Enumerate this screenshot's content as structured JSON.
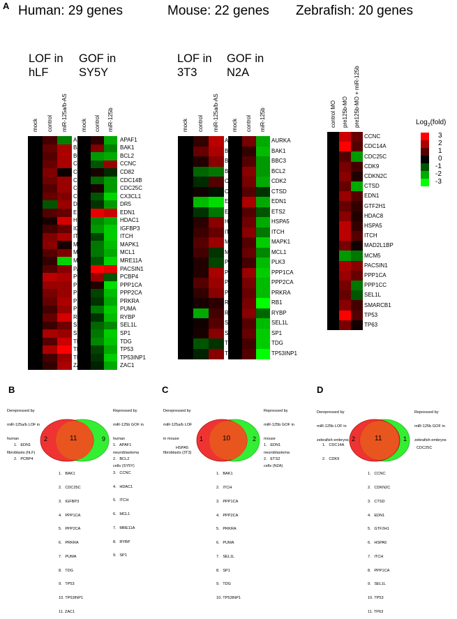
{
  "panel_labels": {
    "a": "A",
    "b": "B",
    "c": "C",
    "d": "D"
  },
  "species_titles": {
    "human": "Human: 29 genes",
    "mouse": "Mouse: 22 genes",
    "zebrafish": "Zebrafish: 20 genes"
  },
  "condition_titles": {
    "human_lof": [
      "LOF in",
      "hLF"
    ],
    "human_gof": [
      "GOF in",
      "SY5Y"
    ],
    "mouse_lof": [
      "LOF in",
      "3T3"
    ],
    "mouse_gof": [
      "GOF in",
      "N2A"
    ]
  },
  "colors": {
    "red": "#ff1a1a",
    "black": "#000000",
    "green": "#1aff1a"
  },
  "legend": {
    "title": "Log",
    "title_sub": "2",
    "title_suffix": "(fold)",
    "ticks": [
      "3",
      "2",
      "1",
      "0",
      "-1",
      "-2",
      "-3"
    ]
  },
  "chart_data": [
    {
      "type": "heatmap",
      "title": "LOF in hLF",
      "columns": [
        "mock",
        "control",
        "miR-125a/b-AS"
      ],
      "rows": [
        "APAF1",
        "BAK1",
        "BCL2",
        "CCNC",
        "CD82",
        "CDC14B",
        "CDC25C",
        "CX3CL1",
        "DR5",
        "EDN1",
        "HDAC1",
        "IGFBP3",
        "ITCH",
        "MAPK1",
        "MCL1",
        "MRE11A",
        "PACSIN1",
        "PCBP4",
        "PPP1CA",
        "PPP2CA",
        "PRKRA",
        "PUMA",
        "RYBP",
        "SEL1L",
        "SP1",
        "TDG",
        "TP53",
        "TP53INP1",
        "ZAC1"
      ],
      "values": [
        [
          0,
          0.8,
          -1.5
        ],
        [
          0,
          1.2,
          2.0
        ],
        [
          0,
          1.0,
          2.0
        ],
        [
          0,
          1.2,
          2.0
        ],
        [
          0,
          1.5,
          0.1
        ],
        [
          0,
          1.3,
          1.8
        ],
        [
          0,
          1.0,
          1.8
        ],
        [
          0,
          1.2,
          1.5
        ],
        [
          0,
          -1.0,
          1.8
        ],
        [
          0,
          1.0,
          1.2
        ],
        [
          0,
          0.3,
          2.5
        ],
        [
          0,
          0.8,
          1.2
        ],
        [
          0,
          1.5,
          2.0
        ],
        [
          0,
          1.6,
          0.3
        ],
        [
          0,
          1.0,
          1.5
        ],
        [
          0,
          0.6,
          -2.5
        ],
        [
          0,
          1.0,
          1.6
        ],
        [
          0,
          2.2,
          2.0
        ],
        [
          0,
          1.8,
          1.8
        ],
        [
          0,
          1.4,
          1.8
        ],
        [
          0,
          1.2,
          2.0
        ],
        [
          0,
          0.8,
          1.8
        ],
        [
          0,
          1.2,
          2.5
        ],
        [
          0,
          0.7,
          1.3
        ],
        [
          0,
          2.0,
          1.8
        ],
        [
          0,
          1.0,
          2.4
        ],
        [
          0,
          2.0,
          3.0
        ],
        [
          0,
          0.8,
          1.8
        ],
        [
          0,
          0.6,
          2.0
        ]
      ],
      "value_range": [
        -3,
        3
      ]
    },
    {
      "type": "heatmap",
      "title": "GOF in SY5Y",
      "columns": [
        "mock",
        "control",
        "miR-125b"
      ],
      "rows": [
        "APAF1",
        "BAK1",
        "BCL2",
        "CCNC",
        "CD82",
        "CDC14B",
        "CDC25C",
        "CX3CL1",
        "DR5",
        "EDN1",
        "HDAC1",
        "IGFBP3",
        "ITCH",
        "MAPK1",
        "MCL1",
        "MRE11A",
        "PACSIN1",
        "PCBP4",
        "PPP1CA",
        "PPP2CA",
        "PRKRA",
        "PUMA",
        "RYBP",
        "SEL1L",
        "SP1",
        "TDG",
        "TP53",
        "TP53INP1",
        "ZAC1"
      ],
      "values": [
        [
          0,
          0.5,
          -2.0
        ],
        [
          0,
          1.5,
          -1.5
        ],
        [
          0,
          -1.8,
          -2.0
        ],
        [
          0,
          -1.0,
          1.8
        ],
        [
          0,
          0.3,
          -0.5
        ],
        [
          0,
          -1.2,
          -1.8
        ],
        [
          0,
          0.3,
          -1.8
        ],
        [
          0,
          -1.0,
          -2.5
        ],
        [
          0,
          -0.6,
          -1.8
        ],
        [
          0,
          2.7,
          2.4
        ],
        [
          0,
          -1.6,
          -2.0
        ],
        [
          0,
          -1.8,
          -2.4
        ],
        [
          0,
          -0.8,
          -2.4
        ],
        [
          0,
          -1.4,
          -2.2
        ],
        [
          0,
          -1.4,
          -2.0
        ],
        [
          0,
          -1.0,
          -2.5
        ],
        [
          0,
          3.0,
          2.7
        ],
        [
          0,
          1.8,
          -1.0
        ],
        [
          0,
          0.4,
          -2.6
        ],
        [
          0,
          -0.8,
          -2.2
        ],
        [
          0,
          -0.6,
          -2.0
        ],
        [
          0,
          -1.4,
          -2.4
        ],
        [
          0,
          -0.6,
          -2.2
        ],
        [
          0,
          -1.2,
          -1.6
        ],
        [
          0,
          -1.4,
          -2.4
        ],
        [
          0,
          -1.6,
          -2.3
        ],
        [
          0,
          -0.8,
          -2.0
        ],
        [
          0,
          -0.6,
          -2.4
        ],
        [
          0,
          -0.4,
          -2.0
        ]
      ],
      "value_range": [
        -3,
        3
      ]
    },
    {
      "type": "heatmap",
      "title": "LOF in 3T3",
      "columns": [
        "mock",
        "control",
        "miR-125a/b-AS"
      ],
      "rows": [
        "AURKA",
        "BAK1",
        "BBC3",
        "BCL2",
        "CDK2",
        "CTSD",
        "EDN1",
        "ETS2",
        "HSPA5",
        "ITCH",
        "MAPK1",
        "MCL1",
        "PLK3",
        "PPP1CA",
        "PPP2CA",
        "PRKRA",
        "RB1",
        "RYBP",
        "SEL1L",
        "SP1",
        "TDG",
        "TP53INP1"
      ],
      "values": [
        [
          0,
          0.6,
          2.2
        ],
        [
          0,
          1.2,
          2.0
        ],
        [
          0,
          0.4,
          1.6
        ],
        [
          0,
          -1.2,
          -1.4
        ],
        [
          0,
          -0.5,
          1.0
        ],
        [
          0,
          0.2,
          -0.2
        ],
        [
          0,
          -2.2,
          -2.6
        ],
        [
          0,
          -0.6,
          -1.4
        ],
        [
          0,
          0.5,
          1.6
        ],
        [
          0,
          0.7,
          1.2
        ],
        [
          0,
          1.0,
          1.8
        ],
        [
          0,
          0.8,
          -0.6
        ],
        [
          0,
          0.4,
          -0.8
        ],
        [
          0,
          0.4,
          2.0
        ],
        [
          0,
          1.0,
          1.8
        ],
        [
          0,
          0.6,
          1.6
        ],
        [
          0,
          0.3,
          0.5
        ],
        [
          0,
          -2.0,
          0.8
        ],
        [
          0,
          0.2,
          1.0
        ],
        [
          0,
          0.3,
          1.6
        ],
        [
          0,
          -1.0,
          -0.6
        ],
        [
          0,
          -0.4,
          1.6
        ]
      ],
      "value_range": [
        -3,
        3
      ]
    },
    {
      "type": "heatmap",
      "title": "GOF in N2A",
      "columns": [
        "mock",
        "control",
        "miR-125b"
      ],
      "rows": [
        "AURKA",
        "BAK1",
        "BBC3",
        "BCL2",
        "CDK2",
        "CTSD",
        "EDN1",
        "ETS2",
        "HSPA5",
        "ITCH",
        "MAPK1",
        "MCL1",
        "PLK3",
        "PPP1CA",
        "PPP2CA",
        "PRKRA",
        "RB1",
        "RYBP",
        "SEL1L",
        "SP1",
        "TDG",
        "TP53INP1"
      ],
      "values": [
        [
          0,
          1.4,
          -2.0
        ],
        [
          0,
          0.6,
          -2.2
        ],
        [
          0,
          1.0,
          -1.8
        ],
        [
          0,
          1.6,
          -1.8
        ],
        [
          0,
          1.4,
          -2.0
        ],
        [
          0,
          1.0,
          -0.6
        ],
        [
          0,
          2.0,
          -2.0
        ],
        [
          0,
          1.0,
          -1.0
        ],
        [
          0,
          1.3,
          -2.0
        ],
        [
          0,
          1.6,
          -1.4
        ],
        [
          0,
          1.0,
          -2.4
        ],
        [
          0,
          1.2,
          -1.6
        ],
        [
          0,
          0.8,
          -2.2
        ],
        [
          0,
          1.8,
          -2.4
        ],
        [
          0,
          1.4,
          -2.2
        ],
        [
          0,
          1.2,
          -2.2
        ],
        [
          0,
          1.4,
          -3.0
        ],
        [
          0,
          1.6,
          -1.2
        ],
        [
          0,
          1.0,
          -2.2
        ],
        [
          0,
          1.2,
          -2.4
        ],
        [
          0,
          0.8,
          -2.4
        ],
        [
          0,
          1.0,
          -3.0
        ]
      ],
      "value_range": [
        -3,
        3
      ]
    },
    {
      "type": "heatmap",
      "title": "",
      "columns": [
        "control MO",
        "pre125b-MO",
        "pre125b-MO + miR-125b"
      ],
      "rows": [
        "CCNC",
        "CDC14A",
        "CDC25C",
        "CDK9",
        "CDKN2C",
        "CTSD",
        "EDN1",
        "GTF2H1",
        "HDAC8",
        "HSPA5",
        "ITCH",
        "MAD2L1BP",
        "MCM5",
        "PACSIN1",
        "PPP1CA",
        "PPP1CC",
        "SEL1L",
        "SMARCB1",
        "TP53",
        "TP63"
      ],
      "values": [
        [
          0,
          2.4,
          1.2
        ],
        [
          0,
          3.0,
          1.0
        ],
        [
          0,
          1.0,
          -1.8
        ],
        [
          0,
          1.4,
          0.8
        ],
        [
          0,
          1.6,
          0.4
        ],
        [
          0,
          1.2,
          -2.0
        ],
        [
          0,
          1.8,
          1.0
        ],
        [
          0,
          1.2,
          0.6
        ],
        [
          0,
          1.6,
          0.4
        ],
        [
          0,
          2.2,
          0.6
        ],
        [
          0,
          2.2,
          1.0
        ],
        [
          0,
          1.4,
          0.2
        ],
        [
          0,
          -1.8,
          -1.4
        ],
        [
          0,
          2.0,
          1.6
        ],
        [
          0,
          1.8,
          1.2
        ],
        [
          0,
          1.4,
          -1.4
        ],
        [
          0,
          1.2,
          -1.0
        ],
        [
          0,
          1.6,
          0.8
        ],
        [
          0,
          3.0,
          1.0
        ],
        [
          0,
          1.4,
          0.2
        ]
      ],
      "value_range": [
        -3,
        3
      ]
    }
  ],
  "venn": {
    "b": {
      "left_desc": [
        "Derepressed by",
        "miR-125a/b LOF in",
        "human",
        "fibroblasts (hLF)"
      ],
      "right_desc": [
        "Repressed by",
        "miR-125b GOF in",
        "human",
        "neuroblastoma",
        "cells (SY5Y)"
      ],
      "left_count": "2",
      "overlap_count": "11",
      "right_count": "9",
      "left_list": [
        "1.   EDN1",
        "2.   PCBP4"
      ],
      "right_list": [
        "1.   APAF1",
        "2.   BCL2",
        "3.   CCNC",
        "4.   HDAC1",
        "5.   ITCH",
        "6.   MCL1",
        "7.   MRE11A",
        "8.   RYBP",
        "9.   SP1"
      ],
      "overlap_list": [
        "1.   BAK1",
        "2.   CDC25C",
        "3.   IGFBP3",
        "4.   PPP1CA",
        "5.   PPP2CA",
        "6.   PRKRA",
        "7.   PUMA",
        "8.   TDG",
        "9.   TP53",
        "10. TP53INP1",
        "11. ZAC1"
      ]
    },
    "c": {
      "left_desc": [
        "Derepressed by",
        "miR-125a/b LOF",
        "in mouse",
        "fibroblasts (3T3)"
      ],
      "right_desc": [
        "Repressed by",
        "miR-125b GOF in",
        "mouse",
        "neuroblastoma",
        "cells (N2A)"
      ],
      "left_count": "1",
      "overlap_count": "10",
      "right_count": "2",
      "left_list": [
        "HSPA5"
      ],
      "right_list": [
        "1.   EDN1",
        "2.   ETS2"
      ],
      "overlap_list": [
        "1.   BAK1",
        "2.   ITCH",
        "3.   PPP1CA",
        "4.   PPP2CA",
        "5.   PRKRA",
        "6.   PUMA",
        "7.   SEL1L",
        "8.   SP1",
        "9.   TDG",
        "10. TP53INP1"
      ]
    },
    "d": {
      "left_desc": [
        "Derepressed by",
        "miR-125b LOF in",
        "zebrafish embryos"
      ],
      "right_desc": [
        "Repressed by",
        "miR-125b GOF in",
        "zebrafish embryos"
      ],
      "left_count": "2",
      "overlap_count": "11",
      "right_count": "1",
      "left_list": [
        "1.   CDC14A",
        "2.   CDK9"
      ],
      "right_list": [
        "CDC25C"
      ],
      "overlap_list": [
        "1.   CCNC",
        "2.   CDKN2C",
        "3.   CTSD",
        "4.   EDN1",
        "5.   GTF2H1",
        "6.   HSPA5",
        "7.   ITCH",
        "8.   PPP1CA",
        "9.   SEL1L",
        "10. TP53",
        "11. TP63"
      ]
    }
  }
}
